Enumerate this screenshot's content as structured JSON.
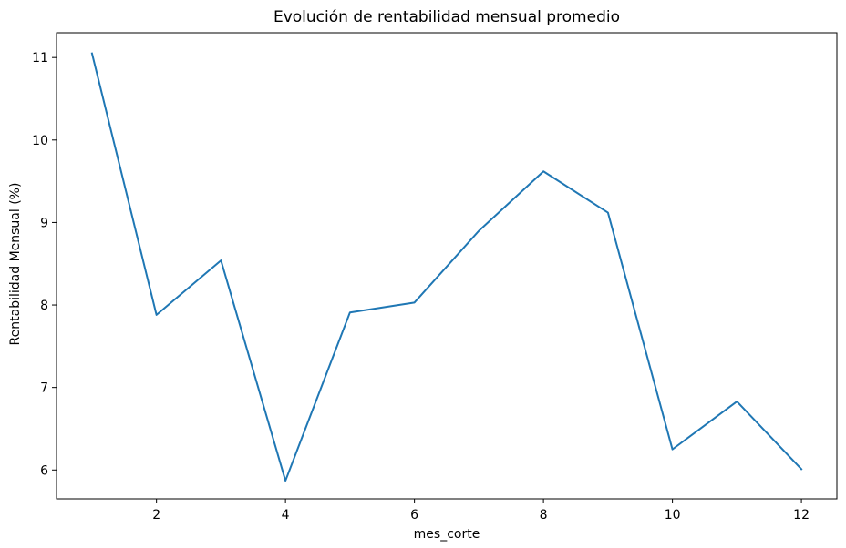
{
  "chart_data": {
    "type": "line",
    "title": "Evolución de rentabilidad mensual promedio",
    "xlabel": "mes_corte",
    "ylabel": "Rentabilidad Mensual (%)",
    "xlim": [
      0.45,
      12.55
    ],
    "ylim": [
      5.65,
      11.3
    ],
    "xticks": [
      2,
      4,
      6,
      8,
      10,
      12
    ],
    "yticks": [
      6,
      7,
      8,
      9,
      10,
      11
    ],
    "grid": false,
    "series": [
      {
        "color": "#1f77b4",
        "x": [
          1,
          2,
          3,
          4,
          5,
          6,
          7,
          8,
          9,
          10,
          11,
          12
        ],
        "y": [
          11.05,
          7.88,
          8.54,
          5.87,
          7.91,
          8.03,
          8.9,
          9.62,
          9.12,
          6.25,
          6.83,
          6.01
        ]
      }
    ]
  }
}
